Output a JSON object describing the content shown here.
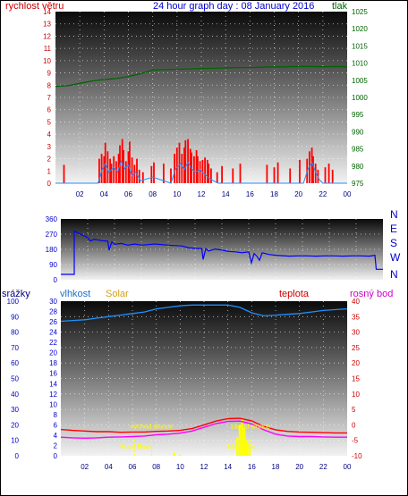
{
  "header": {
    "title": "24 hour graph day : 08 January 2016",
    "left_label": "rychlost větru",
    "right_label": "tlak"
  },
  "lower_header": {
    "srazky": "srážky",
    "vlhkost": "vlhkost",
    "solar": "Solar",
    "teplota": "teplota",
    "rosny_bod": "rosný bod"
  },
  "colors": {
    "wind": "#ff0000",
    "wind_gust": "#1e90ff",
    "pressure": "#006400",
    "direction": "#0000ff",
    "humidity": "#1e90ff",
    "temperature": "#ff0000",
    "dewpoint": "#ff00ff",
    "solar": "#ffff00",
    "red_axis": "#cc0000",
    "green_axis": "#006400",
    "blue_axis": "#0000cc",
    "magenta_axis": "#cc00cc",
    "solar_label": "#d4a017"
  },
  "chart_data": [
    {
      "type": "bar",
      "id": "wind",
      "x_ticks": [
        "02",
        "04",
        "06",
        "08",
        "10",
        "12",
        "14",
        "16",
        "18",
        "20",
        "22",
        "00"
      ],
      "y_left_ticks": [
        "0",
        "1",
        "2",
        "3",
        "4",
        "5",
        "6",
        "7",
        "8",
        "9",
        "10",
        "11",
        "12",
        "13",
        "14"
      ],
      "y_right_ticks": [
        "975",
        "980",
        "985",
        "990",
        "995",
        "1000",
        "1005",
        "1010",
        "1015",
        "1020",
        "1025"
      ],
      "ylim_left": [
        0,
        14
      ],
      "ylim_right": [
        975,
        1025
      ],
      "xlim": [
        0,
        24
      ],
      "wind_bars": [
        [
          0.7,
          1.5
        ],
        [
          3.6,
          2
        ],
        [
          3.8,
          2.4
        ],
        [
          4.0,
          2.2
        ],
        [
          4.1,
          3.3
        ],
        [
          4.3,
          2.6
        ],
        [
          4.5,
          2
        ],
        [
          4.6,
          1.6
        ],
        [
          4.8,
          2.2
        ],
        [
          5.0,
          1.8
        ],
        [
          5.2,
          2.4
        ],
        [
          5.3,
          3.1
        ],
        [
          5.5,
          3.6
        ],
        [
          5.6,
          2.7
        ],
        [
          5.8,
          1.8
        ],
        [
          6.0,
          2.6
        ],
        [
          6.1,
          3.4
        ],
        [
          6.3,
          2.1
        ],
        [
          6.5,
          1.5
        ],
        [
          6.7,
          2
        ],
        [
          6.9,
          1.1
        ],
        [
          7.2,
          0.9
        ],
        [
          7.9,
          1.4
        ],
        [
          8.1,
          1.7
        ],
        [
          8.9,
          1.6
        ],
        [
          9.5,
          1.2
        ],
        [
          9.8,
          2.4
        ],
        [
          10.0,
          2.9
        ],
        [
          10.2,
          3.3
        ],
        [
          10.4,
          2.4
        ],
        [
          10.6,
          2.9
        ],
        [
          10.7,
          3.5
        ],
        [
          10.9,
          3.6
        ],
        [
          11.1,
          2.8
        ],
        [
          11.2,
          2.5
        ],
        [
          11.4,
          2.2
        ],
        [
          11.6,
          2.7
        ],
        [
          11.7,
          2.2
        ],
        [
          11.9,
          1.8
        ],
        [
          12.1,
          1.9
        ],
        [
          12.3,
          2.1
        ],
        [
          12.5,
          1.9
        ],
        [
          12.6,
          1.6
        ],
        [
          12.8,
          1.2
        ],
        [
          13.3,
          0.9
        ],
        [
          13.7,
          1.4
        ],
        [
          14.6,
          1.2
        ],
        [
          15.2,
          1.6
        ],
        [
          17.4,
          1.5
        ],
        [
          18.0,
          1.3
        ],
        [
          18.3,
          1.7
        ],
        [
          19.3,
          1.2
        ],
        [
          20.1,
          1.9
        ],
        [
          20.7,
          2
        ],
        [
          20.9,
          2.6
        ],
        [
          21.1,
          2.9
        ],
        [
          21.2,
          2.2
        ],
        [
          21.4,
          1.6
        ],
        [
          21.6,
          1.1
        ],
        [
          22.2,
          1.3
        ],
        [
          22.5,
          1.6
        ],
        [
          22.8,
          1.1
        ]
      ],
      "gust_line": [
        [
          0,
          0
        ],
        [
          3.5,
          0
        ],
        [
          3.8,
          1
        ],
        [
          4.1,
          1.6
        ],
        [
          4.4,
          0.9
        ],
        [
          4.8,
          1.3
        ],
        [
          5.1,
          0.9
        ],
        [
          5.4,
          1.8
        ],
        [
          5.7,
          1.2
        ],
        [
          6.0,
          1.5
        ],
        [
          6.3,
          0.6
        ],
        [
          6.6,
          0.9
        ],
        [
          7.0,
          0.2
        ],
        [
          8.0,
          0.5
        ],
        [
          9.5,
          0
        ],
        [
          9.9,
          1.2
        ],
        [
          10.3,
          1.6
        ],
        [
          10.6,
          1.1
        ],
        [
          10.9,
          1.7
        ],
        [
          11.2,
          1.2
        ],
        [
          11.5,
          0.9
        ],
        [
          11.9,
          1.1
        ],
        [
          12.3,
          0.7
        ],
        [
          12.8,
          0.3
        ],
        [
          13.4,
          0
        ],
        [
          20.4,
          0
        ],
        [
          20.8,
          1.2
        ],
        [
          21.1,
          1.7
        ],
        [
          21.4,
          0.9
        ],
        [
          21.7,
          0.3
        ],
        [
          22.0,
          0
        ],
        [
          24,
          0
        ]
      ],
      "pressure": [
        [
          0,
          1003.2
        ],
        [
          1,
          1003.4
        ],
        [
          2,
          1004.1
        ],
        [
          3,
          1004.8
        ],
        [
          4,
          1005.2
        ],
        [
          5,
          1005.5
        ],
        [
          6,
          1006.1
        ],
        [
          7,
          1006.9
        ],
        [
          8,
          1008.0
        ],
        [
          9,
          1008.1
        ],
        [
          10,
          1008.2
        ],
        [
          11,
          1008.3
        ],
        [
          12,
          1008.4
        ],
        [
          13,
          1008.5
        ],
        [
          14,
          1008.6
        ],
        [
          15,
          1008.7
        ],
        [
          16,
          1008.7
        ],
        [
          17,
          1008.8
        ],
        [
          18,
          1008.9
        ],
        [
          19,
          1008.9
        ],
        [
          20,
          1009.0
        ],
        [
          21,
          1009.0
        ],
        [
          22,
          1008.9
        ],
        [
          23,
          1009.0
        ],
        [
          24,
          1008.9
        ]
      ]
    },
    {
      "type": "line",
      "id": "direction",
      "x_ticks": [
        "02",
        "04",
        "06",
        "08",
        "10",
        "12",
        "14",
        "16",
        "18",
        "20",
        "22",
        "00"
      ],
      "y_left_ticks": [
        "0",
        "90",
        "180",
        "270",
        "360"
      ],
      "y_right_ticks": [
        "N",
        "W",
        "S",
        "E",
        "N"
      ],
      "ylim": [
        0,
        360
      ],
      "xlim": [
        0,
        24
      ],
      "values": [
        [
          0,
          32
        ],
        [
          1,
          32
        ],
        [
          1,
          288
        ],
        [
          2,
          250
        ],
        [
          2.2,
          230
        ],
        [
          2.5,
          240
        ],
        [
          3,
          232
        ],
        [
          3.5,
          228
        ],
        [
          3.6,
          175
        ],
        [
          3.8,
          225
        ],
        [
          4,
          210
        ],
        [
          4.5,
          215
        ],
        [
          5,
          205
        ],
        [
          5.5,
          212
        ],
        [
          6,
          205
        ],
        [
          6.5,
          208
        ],
        [
          7,
          212
        ],
        [
          8,
          205
        ],
        [
          9,
          200
        ],
        [
          9.5,
          190
        ],
        [
          10,
          186
        ],
        [
          10.5,
          185
        ],
        [
          10.6,
          120
        ],
        [
          10.8,
          185
        ],
        [
          11,
          170
        ],
        [
          11.5,
          182
        ],
        [
          12,
          175
        ],
        [
          12.5,
          168
        ],
        [
          13,
          165
        ],
        [
          13.5,
          160
        ],
        [
          14,
          165
        ],
        [
          14.2,
          100
        ],
        [
          14.4,
          155
        ],
        [
          14.6,
          140
        ],
        [
          14.8,
          115
        ],
        [
          15,
          160
        ],
        [
          15.5,
          150
        ],
        [
          16,
          145
        ],
        [
          17,
          140
        ],
        [
          18,
          142
        ],
        [
          19,
          140
        ],
        [
          20,
          142
        ],
        [
          21,
          140
        ],
        [
          22,
          142
        ],
        [
          23,
          140
        ],
        [
          23.4,
          145
        ],
        [
          23.5,
          62
        ],
        [
          24,
          62
        ]
      ]
    },
    {
      "type": "line",
      "id": "climate",
      "x_ticks": [
        "02",
        "04",
        "06",
        "08",
        "10",
        "12",
        "14",
        "16",
        "18",
        "20",
        "22",
        "00"
      ],
      "y_far_left_ticks": [
        "0",
        "10",
        "20",
        "30",
        "40",
        "50",
        "60",
        "70",
        "80",
        "90",
        "100"
      ],
      "y_left_ticks": [
        "0",
        "2",
        "4",
        "6",
        "8",
        "10",
        "12",
        "14",
        "16",
        "18",
        "20",
        "22",
        "24",
        "26",
        "28",
        "30"
      ],
      "y_right_ticks": [
        "-10",
        "-5",
        "0",
        "5",
        "10",
        "15",
        "20",
        "25",
        "30",
        "35",
        "40"
      ],
      "ylim_humidity": [
        0,
        100
      ],
      "ylim_temp": [
        -10,
        40
      ],
      "xlim": [
        0,
        24
      ],
      "humidity": [
        [
          0,
          87
        ],
        [
          1,
          87.5
        ],
        [
          2,
          88
        ],
        [
          3,
          89
        ],
        [
          4,
          90
        ],
        [
          5,
          91
        ],
        [
          6,
          92
        ],
        [
          7,
          93
        ],
        [
          8,
          95
        ],
        [
          9,
          96
        ],
        [
          10,
          97
        ],
        [
          11,
          97.5
        ],
        [
          12,
          97.5
        ],
        [
          13,
          97.5
        ],
        [
          14,
          97.5
        ],
        [
          15,
          96
        ],
        [
          16,
          92.5
        ],
        [
          17,
          90.5
        ],
        [
          18,
          91
        ],
        [
          19,
          91.5
        ],
        [
          20,
          92
        ],
        [
          21,
          93
        ],
        [
          22,
          94
        ],
        [
          23,
          94.5
        ],
        [
          24,
          95
        ]
      ],
      "temperature": [
        [
          0,
          -1.5
        ],
        [
          1,
          -1.8
        ],
        [
          2,
          -2
        ],
        [
          3,
          -2.2
        ],
        [
          4,
          -2.2
        ],
        [
          5,
          -2.4
        ],
        [
          6,
          -2.3
        ],
        [
          7,
          -2.3
        ],
        [
          8,
          -2.1
        ],
        [
          9,
          -2
        ],
        [
          10,
          -1.8
        ],
        [
          11,
          -1.2
        ],
        [
          12,
          0
        ],
        [
          13,
          1.2
        ],
        [
          14,
          2
        ],
        [
          15,
          2.1
        ],
        [
          16,
          1.3
        ],
        [
          17,
          -0.5
        ],
        [
          18,
          -1.6
        ],
        [
          19,
          -2.1
        ],
        [
          20,
          -2.3
        ],
        [
          21,
          -2.4
        ],
        [
          22,
          -2.5
        ],
        [
          23,
          -2.6
        ],
        [
          24,
          -2.6
        ]
      ],
      "dewpoint": [
        [
          0,
          -4
        ],
        [
          1,
          -4.2
        ],
        [
          2,
          -4.3
        ],
        [
          3,
          -4.2
        ],
        [
          4,
          -4
        ],
        [
          5,
          -3.9
        ],
        [
          6,
          -3.8
        ],
        [
          7,
          -3.6
        ],
        [
          8,
          -3.2
        ],
        [
          9,
          -3
        ],
        [
          10,
          -2.7
        ],
        [
          11,
          -2
        ],
        [
          12,
          -0.8
        ],
        [
          13,
          0.4
        ],
        [
          14,
          1.1
        ],
        [
          15,
          1.2
        ],
        [
          16,
          0.3
        ],
        [
          17,
          -1.6
        ],
        [
          18,
          -3
        ],
        [
          19,
          -3.6
        ],
        [
          20,
          -3.8
        ],
        [
          21,
          -3.8
        ],
        [
          22,
          -3.9
        ],
        [
          23,
          -4
        ],
        [
          24,
          -4
        ]
      ],
      "solar": [
        [
          9.5,
          1
        ],
        [
          10,
          0.4
        ],
        [
          14.8,
          6
        ],
        [
          15.0,
          10
        ],
        [
          15.2,
          12
        ],
        [
          15.4,
          9
        ],
        [
          15.6,
          5
        ],
        [
          15.8,
          3
        ]
      ],
      "annotations": [
        {
          "text": "východ slunce",
          "x": 7.6,
          "temp": -1.2
        },
        {
          "text": "západ slunce",
          "x": 15.9,
          "temp": -1.2
        },
        {
          "text": "Moon Rise",
          "x": 6.2,
          "temp": -7.7
        },
        {
          "text": "Moon Set",
          "x": 15.2,
          "temp": -7.7
        }
      ],
      "markers": [
        7.6,
        15.9,
        6.2,
        15.2
      ]
    }
  ]
}
